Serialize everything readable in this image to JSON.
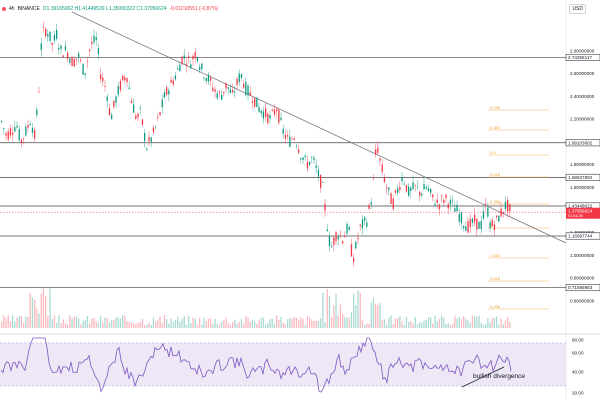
{
  "legend": {
    "symbol": "4h",
    "exchange": "BINANCE",
    "ohlc": "O1.39165002 H1.41449539 L1.35990322 C1.37956624",
    "change": "-0.01210551 (-0.87%)"
  },
  "currency": "USD",
  "price_axis": [
    "2.80000000",
    "2.60000000",
    "2.40000000",
    "2.20000000",
    "2.00000000",
    "1.80000000",
    "1.60000000",
    "1.40000000",
    "1.20000000",
    "1.00000000",
    "0.80000000",
    "0.60000000"
  ],
  "levels": [
    {
      "label": "2.74256117",
      "price": 2.742
    },
    {
      "label": "1.99103002",
      "price": 1.991
    },
    {
      "label": "1.68637892",
      "price": 1.686
    },
    {
      "label": "1.43448022",
      "price": 1.434
    },
    {
      "label": "1.16997744",
      "price": 1.17
    },
    {
      "label": "0.71588983",
      "price": 0.716
    }
  ],
  "current_price": {
    "label": "1.37956624",
    "sub": "01:01:26",
    "price": 1.3796
  },
  "fib_labels": [
    "0.0",
    "0.236",
    "0.382",
    "0.5",
    "0.618",
    "0.786",
    "1",
    "1.618",
    "2.618",
    "4.236"
  ],
  "rsi_axis": [
    "80.00",
    "60.00",
    "40.00",
    "20.00"
  ],
  "annotations": {
    "bullish_divergence": "bullish divergence"
  },
  "colors": {
    "up": "#089981",
    "down": "#f23645",
    "rsi_line": "#7e57c2",
    "rsi_band": "#ede7f6",
    "fib": "#f0a030",
    "level": "#444444",
    "price_badge": "#f23645"
  }
}
